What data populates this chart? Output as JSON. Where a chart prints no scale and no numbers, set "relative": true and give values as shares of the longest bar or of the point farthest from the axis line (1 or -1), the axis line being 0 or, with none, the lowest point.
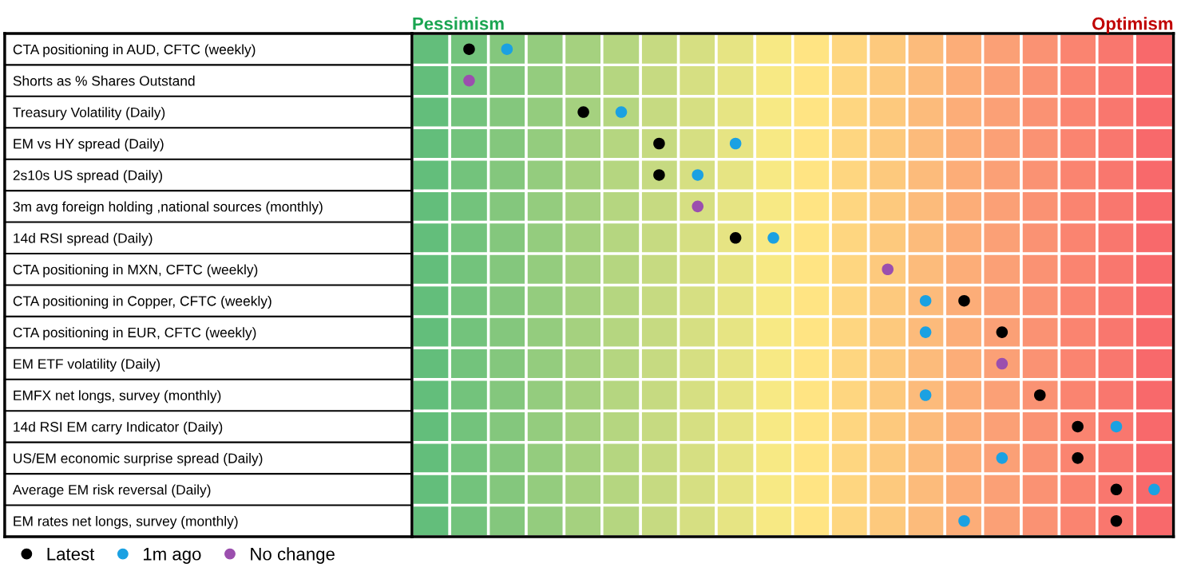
{
  "chart_data": {
    "type": "scatter",
    "orientation": "horizontal",
    "relative": true,
    "tick_labels": "y",
    "grid": true,
    "legend": "bottom left",
    "marker": "circle",
    "categories": [
      "CTA positioning in AUD, CFTC (weekly)",
      "Shorts as % Shares Outstand",
      "Treasury Volatility (Daily)",
      "EM vs HY spread (Daily)",
      "2s10s US spread (Daily)",
      "3m avg foreign holding ,national sources (monthly)",
      "14d RSI spread (Daily)",
      "CTA positioning in MXN, CFTC (weekly)",
      "CTA positioning in Copper, CFTC (weekly)",
      "CTA positioning in EUR, CFTC (weekly)",
      "EM ETF volatility (Daily)",
      "EMFX net longs, survey (monthly)",
      "14d RSI EM carry Indicator (Daily)",
      "US/EM economic surprise spread (Daily)",
      "Average EM risk reversal (Daily)",
      "EM rates net longs, survey (monthly)"
    ],
    "series": [
      {
        "name": "Latest",
        "color": "#000000",
        "values": [
          0.077,
          null,
          0.231,
          0.333,
          0.333,
          null,
          0.436,
          null,
          0.744,
          0.795,
          null,
          0.846,
          0.897,
          0.897,
          0.949,
          0.949
        ]
      },
      {
        "name": "1m ago",
        "color": "#1ba1e2",
        "values": [
          0.128,
          null,
          0.282,
          0.436,
          0.385,
          null,
          0.487,
          null,
          0.692,
          0.692,
          null,
          0.692,
          0.949,
          0.795,
          1,
          0.744
        ]
      },
      {
        "name": "No change",
        "color": "#9b4fae",
        "values": [
          null,
          0.077,
          null,
          null,
          null,
          0.385,
          null,
          0.641,
          null,
          null,
          0.795,
          null,
          null,
          null,
          null,
          null
        ]
      }
    ],
    "bands": [
      {
        "axis": "x",
        "from": 0,
        "to": 0.051,
        "color": "#63be7b"
      },
      {
        "axis": "x",
        "from": 0.051,
        "to": 0.103,
        "color": "#73c37c"
      },
      {
        "axis": "x",
        "from": 0.103,
        "to": 0.154,
        "color": "#84c77d"
      },
      {
        "axis": "x",
        "from": 0.154,
        "to": 0.205,
        "color": "#94cc7e"
      },
      {
        "axis": "x",
        "from": 0.205,
        "to": 0.256,
        "color": "#a5d17f"
      },
      {
        "axis": "x",
        "from": 0.256,
        "to": 0.308,
        "color": "#b5d680"
      },
      {
        "axis": "x",
        "from": 0.308,
        "to": 0.359,
        "color": "#c6da81"
      },
      {
        "axis": "x",
        "from": 0.359,
        "to": 0.41,
        "color": "#d6df82"
      },
      {
        "axis": "x",
        "from": 0.41,
        "to": 0.462,
        "color": "#e6e483"
      },
      {
        "axis": "x",
        "from": 0.462,
        "to": 0.513,
        "color": "#f7e984"
      },
      {
        "axis": "x",
        "from": 0.513,
        "to": 0.564,
        "color": "#ffe483"
      },
      {
        "axis": "x",
        "from": 0.564,
        "to": 0.615,
        "color": "#fed680"
      },
      {
        "axis": "x",
        "from": 0.615,
        "to": 0.667,
        "color": "#fdc97d"
      },
      {
        "axis": "x",
        "from": 0.667,
        "to": 0.718,
        "color": "#fcbb7b"
      },
      {
        "axis": "x",
        "from": 0.718,
        "to": 0.769,
        "color": "#fcad78"
      },
      {
        "axis": "x",
        "from": 0.769,
        "to": 0.821,
        "color": "#fba076"
      },
      {
        "axis": "x",
        "from": 0.821,
        "to": 0.872,
        "color": "#fa9273"
      },
      {
        "axis": "x",
        "from": 0.872,
        "to": 0.923,
        "color": "#fa8470"
      },
      {
        "axis": "x",
        "from": 0.923,
        "to": 0.974,
        "color": "#f9776e"
      },
      {
        "axis": "x",
        "from": 0.974,
        "to": 1.026,
        "color": "#f8696b"
      }
    ],
    "annotations": [
      "Pessimism",
      "Optimism"
    ]
  }
}
